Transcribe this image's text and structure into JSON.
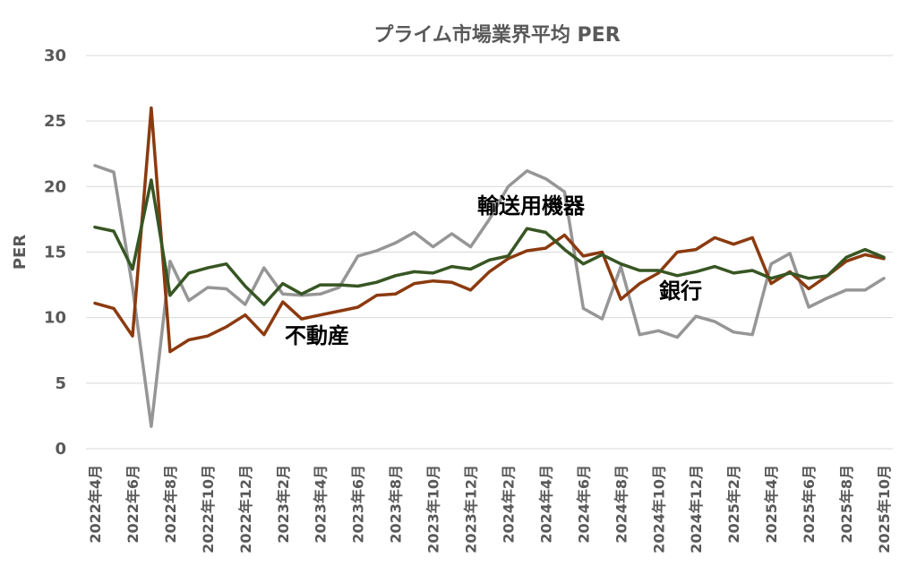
{
  "chart_data": {
    "type": "line",
    "title": "プライム市場業界平均 PER",
    "xlabel": "",
    "ylabel": "PER",
    "ylim": [
      0,
      30
    ],
    "yticks": [
      0,
      5,
      10,
      15,
      20,
      25,
      30
    ],
    "grid": true,
    "x": [
      "2022年4月",
      "2022年5月",
      "2022年6月",
      "2022年7月",
      "2022年8月",
      "2022年9月",
      "2022年10月",
      "2022年11月",
      "2022年12月",
      "2023年1月",
      "2023年2月",
      "2023年3月",
      "2023年4月",
      "2023年5月",
      "2023年6月",
      "2023年7月",
      "2023年8月",
      "2023年9月",
      "2023年10月",
      "2023年11月",
      "2023年12月",
      "2024年1月",
      "2024年2月",
      "2024年3月",
      "2024年4月",
      "2024年5月",
      "2024年6月",
      "2024年7月",
      "2024年8月",
      "2024年9月",
      "2024年10月",
      "2024年11月",
      "2024年12月",
      "2025年1月",
      "2025年2月",
      "2025年3月",
      "2025年4月",
      "2025年5月",
      "2025年6月",
      "2025年7月",
      "2025年8月",
      "2025年9月",
      "2025年10月"
    ],
    "xticklabels": [
      "2022年4月",
      "2022年6月",
      "2022年8月",
      "2022年10月",
      "2022年12月",
      "2023年2月",
      "2023年4月",
      "2023年6月",
      "2023年8月",
      "2023年10月",
      "2023年12月",
      "2024年2月",
      "2024年4月",
      "2024年6月",
      "2024年8月",
      "2024年10月",
      "2024年12月",
      "2025年2月",
      "2025年4月",
      "2025年6月",
      "2025年8月",
      "2025年10月"
    ],
    "series": [
      {
        "name": "輸送用機器",
        "color": "#969696",
        "values": [
          21.6,
          21.1,
          12.3,
          1.7,
          14.3,
          11.3,
          12.3,
          12.2,
          11.0,
          13.8,
          11.8,
          11.7,
          11.8,
          12.3,
          14.7,
          15.1,
          15.7,
          16.5,
          15.4,
          16.4,
          15.4,
          17.5,
          20.0,
          21.2,
          20.6,
          19.6,
          10.7,
          9.9,
          13.9,
          8.7,
          9.0,
          8.5,
          10.1,
          9.7,
          8.9,
          8.7,
          14.1,
          14.9,
          10.8,
          11.5,
          12.1,
          12.1,
          13.0
        ]
      },
      {
        "name": "不動産",
        "color": "#8b3a0f",
        "values": [
          11.1,
          10.7,
          8.6,
          26.0,
          7.4,
          8.3,
          8.6,
          9.3,
          10.2,
          8.7,
          11.2,
          9.9,
          10.2,
          10.5,
          10.8,
          11.7,
          11.8,
          12.6,
          12.8,
          12.7,
          12.1,
          13.5,
          14.5,
          15.1,
          15.3,
          16.3,
          14.7,
          15.0,
          11.4,
          12.6,
          13.4,
          15.0,
          15.2,
          16.1,
          15.6,
          16.1,
          12.6,
          13.5,
          12.2,
          13.2,
          14.3,
          14.8,
          14.5
        ]
      },
      {
        "name": "銀行",
        "color": "#375623",
        "values": [
          16.9,
          16.6,
          13.7,
          20.5,
          11.7,
          13.4,
          13.8,
          14.1,
          12.4,
          11.0,
          12.6,
          11.8,
          12.5,
          12.5,
          12.4,
          12.7,
          13.2,
          13.5,
          13.4,
          13.9,
          13.7,
          14.4,
          14.7,
          16.8,
          16.5,
          15.2,
          14.1,
          14.8,
          14.1,
          13.6,
          13.6,
          13.2,
          13.5,
          13.9,
          13.4,
          13.6,
          13.0,
          13.4,
          13.0,
          13.2,
          14.6,
          15.2,
          14.6
        ]
      }
    ],
    "annotations": [
      {
        "text": "輸送用機器",
        "series": "輸送用機器"
      },
      {
        "text": "不動産",
        "series": "不動産"
      },
      {
        "text": "銀行",
        "series": "銀行"
      }
    ]
  }
}
